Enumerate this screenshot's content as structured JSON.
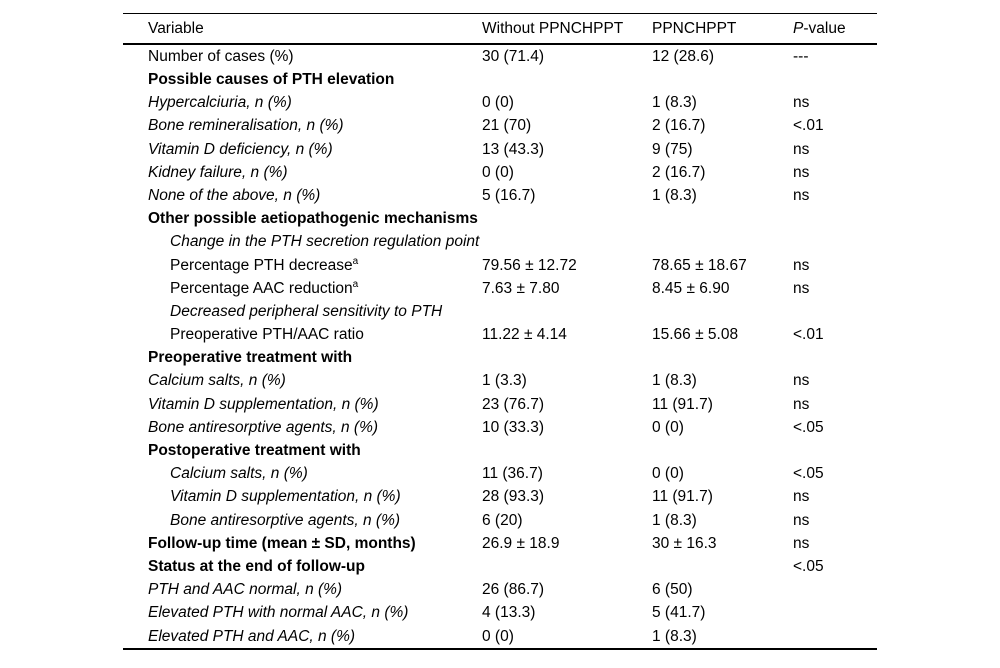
{
  "page": {
    "background": "#ffffff",
    "text_color": "#000000",
    "rule_color": "#000000"
  },
  "table": {
    "columns": [
      {
        "label": "Variable"
      },
      {
        "label": "Without PPNCHPPT"
      },
      {
        "label": "PPNCHPPT"
      },
      {
        "label": "P-value",
        "italic_part": "P",
        "rest": "-value"
      }
    ],
    "rows": [
      {
        "label": "Number of cases (%)",
        "without_ppnchppt": "30 (71.4)",
        "ppnchppt": "12 (28.6)",
        "p_value": "---",
        "style": "plain",
        "indent": 0
      },
      {
        "label": "Possible causes of PTH elevation",
        "without_ppnchppt": "",
        "ppnchppt": "",
        "p_value": "",
        "style": "bold",
        "indent": 0
      },
      {
        "label": "Hypercalciuria, n (%)",
        "without_ppnchppt": "0 (0)",
        "ppnchppt": "1 (8.3)",
        "p_value": "ns",
        "style": "italic",
        "indent": 0
      },
      {
        "label": "Bone remineralisation, n (%)",
        "without_ppnchppt": "21 (70)",
        "ppnchppt": "2 (16.7)",
        "p_value": "<.01",
        "style": "italic",
        "indent": 0
      },
      {
        "label": "Vitamin D deficiency, n (%)",
        "without_ppnchppt": "13 (43.3)",
        "ppnchppt": "9 (75)",
        "p_value": "ns",
        "style": "italic",
        "indent": 0
      },
      {
        "label": "Kidney failure, n (%)",
        "without_ppnchppt": "0 (0)",
        "ppnchppt": "2 (16.7)",
        "p_value": "ns",
        "style": "italic",
        "indent": 0
      },
      {
        "label": "None of the above, n (%)",
        "without_ppnchppt": "5 (16.7)",
        "ppnchppt": "1 (8.3)",
        "p_value": "ns",
        "style": "italic",
        "indent": 0
      },
      {
        "label": "Other possible aetiopathogenic mechanisms",
        "without_ppnchppt": "",
        "ppnchppt": "",
        "p_value": "",
        "style": "bold",
        "indent": 0
      },
      {
        "label": "Change in the PTH secretion regulation point",
        "without_ppnchppt": "",
        "ppnchppt": "",
        "p_value": "",
        "style": "italic",
        "indent": 1
      },
      {
        "label": "Percentage PTH decrease",
        "sup": "a",
        "without_ppnchppt": "79.56 ± 12.72",
        "ppnchppt": "78.65 ± 18.67",
        "p_value": "ns",
        "style": "plain",
        "indent": 1
      },
      {
        "label": "Percentage AAC reduction",
        "sup": "a",
        "without_ppnchppt": "7.63 ± 7.80",
        "ppnchppt": "8.45 ± 6.90",
        "p_value": "ns",
        "style": "plain",
        "indent": 1
      },
      {
        "label": "Decreased peripheral sensitivity to PTH",
        "without_ppnchppt": "",
        "ppnchppt": "",
        "p_value": "",
        "style": "italic",
        "indent": 1
      },
      {
        "label": "Preoperative PTH/AAC ratio",
        "without_ppnchppt": "11.22 ± 4.14",
        "ppnchppt": "15.66 ± 5.08",
        "p_value": "<.01",
        "style": "plain",
        "indent": 1
      },
      {
        "label": "Preoperative treatment with",
        "without_ppnchppt": "",
        "ppnchppt": "",
        "p_value": "",
        "style": "bold",
        "indent": 0
      },
      {
        "label": "Calcium salts, n (%)",
        "without_ppnchppt": "1 (3.3)",
        "ppnchppt": "1 (8.3)",
        "p_value": "ns",
        "style": "italic",
        "indent": 0
      },
      {
        "label": "Vitamin D supplementation, n (%)",
        "without_ppnchppt": "23 (76.7)",
        "ppnchppt": "11 (91.7)",
        "p_value": "ns",
        "style": "italic",
        "indent": 0
      },
      {
        "label": "Bone antiresorptive agents, n (%)",
        "without_ppnchppt": "10 (33.3)",
        "ppnchppt": "0 (0)",
        "p_value": "<.05",
        "style": "italic",
        "indent": 0
      },
      {
        "label": "Postoperative treatment with",
        "without_ppnchppt": "",
        "ppnchppt": "",
        "p_value": "",
        "style": "bold",
        "indent": 0
      },
      {
        "label": "Calcium salts, n (%)",
        "without_ppnchppt": "11 (36.7)",
        "ppnchppt": "0 (0)",
        "p_value": "<.05",
        "style": "italic",
        "indent": 1
      },
      {
        "label": "Vitamin D supplementation, n (%)",
        "without_ppnchppt": "28 (93.3)",
        "ppnchppt": "11 (91.7)",
        "p_value": "ns",
        "style": "italic",
        "indent": 1
      },
      {
        "label": "Bone antiresorptive agents, n (%)",
        "without_ppnchppt": "6 (20)",
        "ppnchppt": "1 (8.3)",
        "p_value": "ns",
        "style": "italic",
        "indent": 1
      },
      {
        "label": "Follow-up time (mean ± SD, months)",
        "without_ppnchppt": "26.9 ± 18.9",
        "ppnchppt": "30 ± 16.3",
        "p_value": "ns",
        "style": "bold",
        "indent": 0
      },
      {
        "label": "Status at the end of follow-up",
        "without_ppnchppt": "",
        "ppnchppt": "",
        "p_value": "<.05",
        "style": "bold",
        "indent": 0
      },
      {
        "label": "PTH and AAC normal, n (%)",
        "without_ppnchppt": "26 (86.7)",
        "ppnchppt": "6 (50)",
        "p_value": "",
        "style": "italic",
        "indent": 0
      },
      {
        "label": "Elevated PTH with normal AAC, n (%)",
        "without_ppnchppt": "4 (13.3)",
        "ppnchppt": "5 (41.7)",
        "p_value": "",
        "style": "italic",
        "indent": 0
      },
      {
        "label": "Elevated PTH and AAC, n (%)",
        "without_ppnchppt": "0 (0)",
        "ppnchppt": "1 (8.3)",
        "p_value": "",
        "style": "italic",
        "indent": 0
      }
    ]
  }
}
